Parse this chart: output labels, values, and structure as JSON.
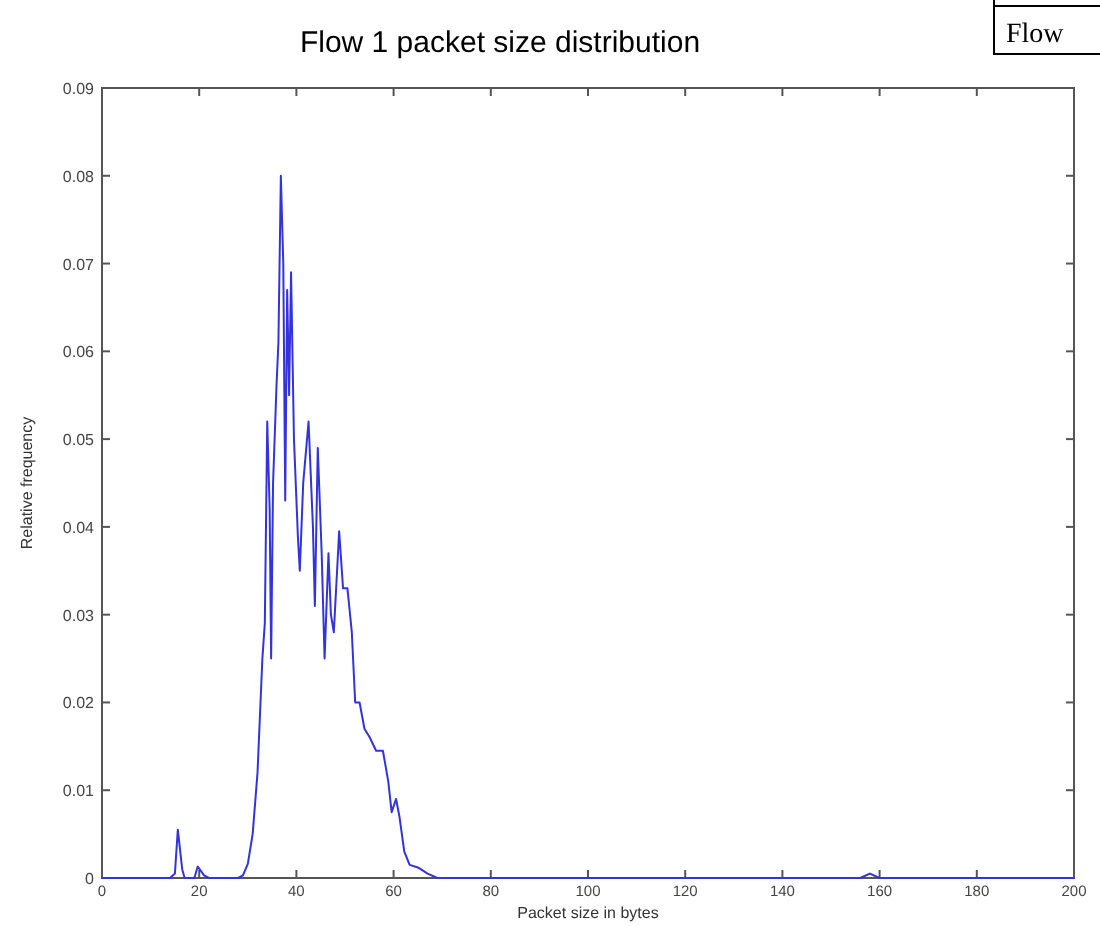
{
  "chart_data": {
    "type": "line",
    "title": "Flow 1 packet size distribution",
    "xlabel": "Packet size in bytes",
    "ylabel": "Relative frequency",
    "annotations": [
      "Flow"
    ],
    "x": [
      0,
      14,
      15,
      15.6,
      16.5,
      17,
      19,
      19.7,
      21,
      22,
      28,
      29,
      30,
      31,
      32,
      33,
      33.5,
      34,
      34.5,
      34.8,
      35.2,
      35.9,
      36.3,
      36.8,
      37.3,
      37.7,
      38.1,
      38.5,
      38.9,
      39.5,
      40.3,
      40.7,
      41.4,
      42.5,
      43.4,
      43.8,
      44.4,
      45.2,
      45.8,
      46.6,
      47.1,
      47.7,
      48.8,
      49.6,
      50.5,
      51.4,
      52.1,
      53,
      54,
      55.1,
      56.4,
      57.8,
      58.9,
      59.6,
      60.5,
      61.2,
      62.2,
      63.3,
      65,
      67,
      69,
      156,
      158,
      160,
      200
    ],
    "series": [
      {
        "color": "#3333dd",
        "values": [
          0,
          0,
          0.0005,
          0.0055,
          0.001,
          0,
          0,
          0.0013,
          0.0003,
          0,
          0,
          0.0003,
          0.0016,
          0.005,
          0.012,
          0.025,
          0.029,
          0.052,
          0.042,
          0.025,
          0.045,
          0.056,
          0.061,
          0.08,
          0.07,
          0.043,
          0.067,
          0.055,
          0.069,
          0.05,
          0.039,
          0.035,
          0.045,
          0.052,
          0.04,
          0.031,
          0.049,
          0.037,
          0.025,
          0.037,
          0.03,
          0.028,
          0.0395,
          0.033,
          0.033,
          0.028,
          0.02,
          0.02,
          0.017,
          0.016,
          0.0145,
          0.0145,
          0.011,
          0.0075,
          0.009,
          0.007,
          0.003,
          0.0015,
          0.0012,
          0.0005,
          0,
          0,
          0.0005,
          0,
          0
        ]
      }
    ],
    "xlim": [
      0,
      200
    ],
    "xticks": [
      0,
      20,
      40,
      60,
      80,
      100,
      120,
      140,
      160,
      180,
      200
    ],
    "ylim": [
      0,
      0.09
    ],
    "yticks": [
      0,
      0.01,
      0.02,
      0.03,
      0.04,
      0.05,
      0.06,
      0.07,
      0.08,
      0.09
    ],
    "grid": false,
    "marker": "none",
    "line_style": "solid"
  }
}
